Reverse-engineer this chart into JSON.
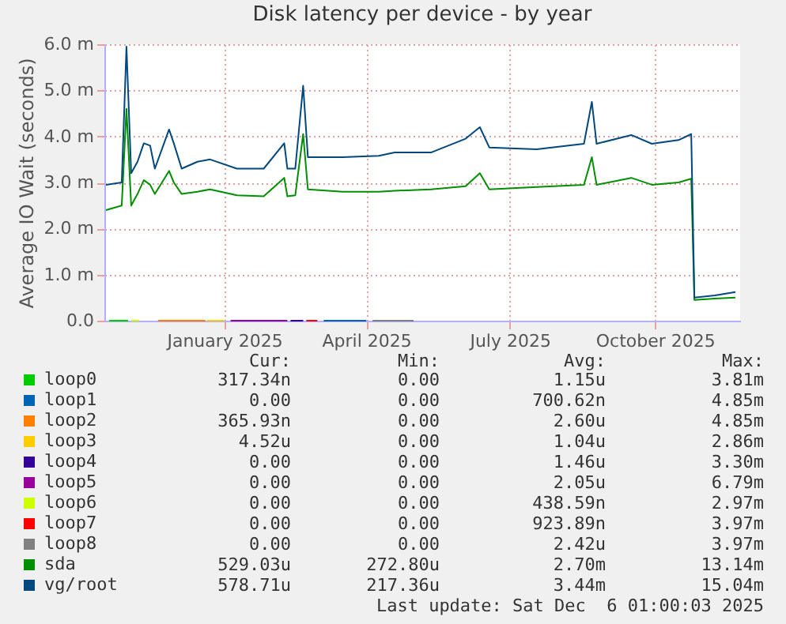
{
  "chart_data": {
    "type": "line",
    "title": "Disk latency per device - by year",
    "ylabel": "Average IO Wait (seconds)",
    "x": [
      "2024-10-18",
      "2024-10-28",
      "2024-10-31",
      "2024-11-03",
      "2024-11-07",
      "2024-11-11",
      "2024-11-15",
      "2024-11-18",
      "2024-11-27",
      "2024-11-30",
      "2024-12-05",
      "2024-12-15",
      "2024-12-23",
      "2025-01-09",
      "2025-01-26",
      "2025-02-08",
      "2025-02-10",
      "2025-02-15",
      "2025-02-20",
      "2025-02-23",
      "2025-03-17",
      "2025-04-09",
      "2025-04-19",
      "2025-05-12",
      "2025-06-03",
      "2025-06-12",
      "2025-06-18",
      "2025-07-18",
      "2025-08-17",
      "2025-08-22",
      "2025-08-25",
      "2025-09-16",
      "2025-09-29",
      "2025-10-16",
      "2025-10-24",
      "2025-10-26",
      "2025-11-08",
      "2025-11-21"
    ],
    "series": [
      {
        "name": "loop0",
        "color": "#00cc00",
        "x": [
          "2024-10-20",
          "2024-11-01"
        ],
        "values": [
          0,
          0
        ]
      },
      {
        "name": "loop1",
        "color": "#0066b3",
        "x": [
          "2025-03-05",
          "2025-04-01"
        ],
        "values": [
          0,
          0
        ]
      },
      {
        "name": "loop2",
        "color": "#ff8000",
        "x": [
          "2024-11-20",
          "2024-12-20"
        ],
        "values": [
          0,
          0
        ]
      },
      {
        "name": "loop3",
        "color": "#ffcc00",
        "x": [
          "2024-12-21",
          "2025-01-01"
        ],
        "values": [
          0,
          0
        ]
      },
      {
        "name": "loop4",
        "color": "#330099",
        "x": [
          "2025-02-12",
          "2025-02-20"
        ],
        "values": [
          0,
          0
        ]
      },
      {
        "name": "loop5",
        "color": "#990099",
        "x": [
          "2025-01-05",
          "2025-02-10"
        ],
        "values": [
          0,
          0
        ]
      },
      {
        "name": "loop6",
        "color": "#ccff00",
        "x": [
          "2024-11-03",
          "2024-11-08"
        ],
        "values": [
          0,
          0
        ]
      },
      {
        "name": "loop7",
        "color": "#ff0000",
        "x": [
          "2025-02-22",
          "2025-03-01"
        ],
        "values": [
          0,
          0
        ]
      },
      {
        "name": "loop8",
        "color": "#808080",
        "x": [
          "2025-04-05",
          "2025-05-01"
        ],
        "values": [
          0,
          0
        ]
      },
      {
        "name": "sda",
        "color": "#008f00",
        "values": [
          2.4,
          2.5,
          4.6,
          2.5,
          2.75,
          3.05,
          2.95,
          2.75,
          3.25,
          3.0,
          2.75,
          2.8,
          2.85,
          2.72,
          2.7,
          3.1,
          2.7,
          2.72,
          4.05,
          2.85,
          2.8,
          2.8,
          2.82,
          2.85,
          2.92,
          3.2,
          2.85,
          2.9,
          2.95,
          3.55,
          2.95,
          3.1,
          2.95,
          3.0,
          3.08,
          0.45,
          0.48,
          0.5
        ]
      },
      {
        "name": "vg/root",
        "color": "#00487d",
        "values": [
          2.95,
          3.0,
          5.95,
          3.2,
          3.45,
          3.85,
          3.8,
          3.3,
          4.15,
          3.85,
          3.3,
          3.45,
          3.5,
          3.3,
          3.3,
          3.85,
          3.3,
          3.3,
          5.1,
          3.55,
          3.55,
          3.58,
          3.65,
          3.65,
          3.95,
          4.2,
          3.76,
          3.72,
          3.84,
          4.75,
          3.84,
          4.03,
          3.84,
          3.92,
          4.05,
          0.5,
          0.55,
          0.62
        ]
      }
    ],
    "xlim": [
      "2024-10-17",
      "2025-11-24"
    ],
    "xticks": [
      {
        "value": "2025-01-01",
        "label": "January 2025"
      },
      {
        "value": "2025-04-01",
        "label": "April 2025"
      },
      {
        "value": "2025-07-01",
        "label": "July 2025"
      },
      {
        "value": "2025-10-01",
        "label": "October 2025"
      }
    ],
    "ylim": [
      0,
      6
    ],
    "yticks": [
      {
        "value": 0,
        "label": "0.0"
      },
      {
        "value": 1,
        "label": "1.0 m"
      },
      {
        "value": 2,
        "label": "2.0 m"
      },
      {
        "value": 3,
        "label": "3.0 m"
      },
      {
        "value": 4,
        "label": "4.0 m"
      },
      {
        "value": 5,
        "label": "5.0 m"
      },
      {
        "value": 6,
        "label": "6.0 m"
      }
    ],
    "grid": true,
    "legend": "bottom left",
    "line_style": "solid",
    "marker": "none",
    "annotations": [
      "Cur:",
      "Min:",
      "Avg:",
      "Max:",
      "317.34n",
      "0.00",
      "1.15u",
      "3.81m",
      "0.00",
      "0.00",
      "700.62n",
      "4.85m",
      "365.93n",
      "0.00",
      "2.60u",
      "4.85m",
      "4.52u",
      "0.00",
      "1.04u",
      "2.86m",
      "0.00",
      "0.00",
      "1.46u",
      "3.30m",
      "0.00",
      "0.00",
      "2.05u",
      "6.79m",
      "0.00",
      "0.00",
      "438.59n",
      "2.97m",
      "0.00",
      "0.00",
      "923.89n",
      "3.97m",
      "0.00",
      "0.00",
      "2.42u",
      "3.97m",
      "529.03u",
      "272.80u",
      "2.70m",
      "13.14m",
      "578.71u",
      "217.36u",
      "3.44m",
      "15.04m",
      "Last update: Sat Dec  6 01:00:03 2025"
    ]
  }
}
